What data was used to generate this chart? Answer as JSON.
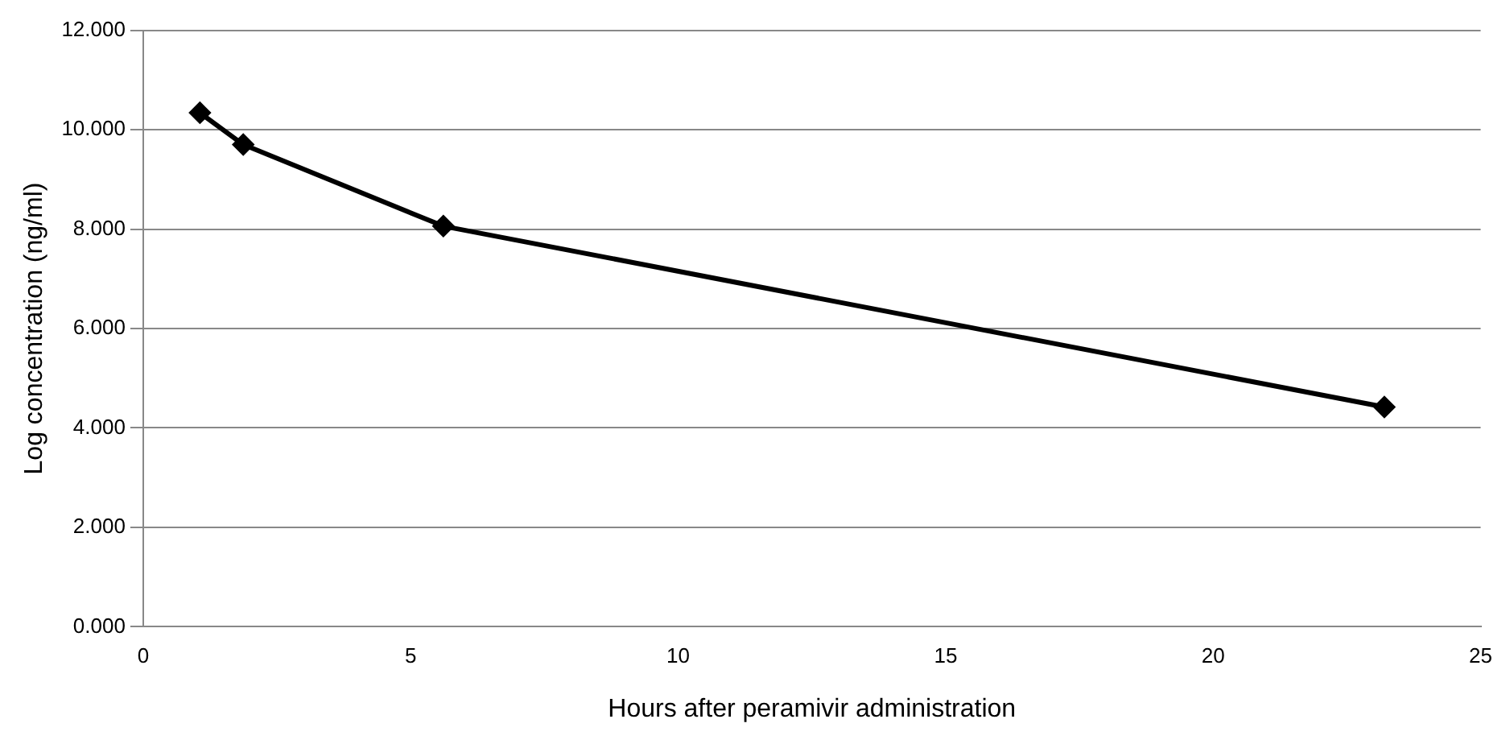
{
  "chart_data": {
    "type": "line",
    "xlabel": "Hours after peramivir administration",
    "ylabel": "Log concentration (ng/ml)",
    "x": [
      1.06,
      1.87,
      5.61,
      23.2
    ],
    "series": [
      {
        "color": "#000000",
        "values": [
          10.34,
          9.7,
          8.06,
          4.42
        ]
      }
    ],
    "xlim": [
      0,
      25
    ],
    "xticks": [
      0,
      5,
      10,
      15,
      20,
      25
    ],
    "ylim": [
      0,
      12
    ],
    "yticks": [
      {
        "value": 0,
        "label": "0.000"
      },
      {
        "value": 2,
        "label": "2.000"
      },
      {
        "value": 4,
        "label": "4.000"
      },
      {
        "value": 6,
        "label": "6.000"
      },
      {
        "value": 8,
        "label": "8.000"
      },
      {
        "value": 10,
        "label": "10.000"
      },
      {
        "value": 12,
        "label": "12.000"
      }
    ],
    "grid": "y",
    "legend": false,
    "marker": "diamond",
    "line_style": "solid"
  }
}
